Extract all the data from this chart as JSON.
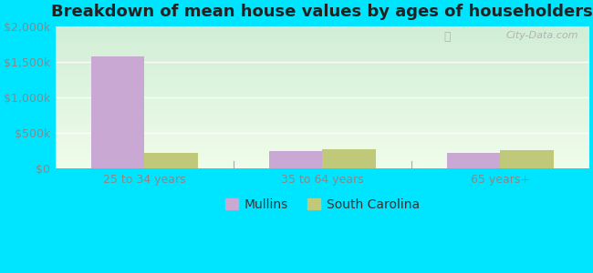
{
  "title": "Breakdown of mean house values by ages of householders",
  "categories": [
    "25 to 34 years",
    "35 to 64 years",
    "65 years+"
  ],
  "mullins_values": [
    1580000,
    240000,
    220000
  ],
  "sc_values": [
    220000,
    270000,
    260000
  ],
  "ylim": [
    0,
    2000000
  ],
  "yticks": [
    0,
    500000,
    1000000,
    1500000,
    2000000
  ],
  "ytick_labels": [
    "$0",
    "$500k",
    "$1,000k",
    "$1,500k",
    "$2,000k"
  ],
  "mullins_color": "#c9a8d4",
  "sc_color": "#c0c87a",
  "background_outer": "#00e5ff",
  "title_fontsize": 13,
  "legend_mullins": "Mullins",
  "legend_sc": "South Carolina",
  "watermark": "City-Data.com",
  "bar_width": 0.3
}
